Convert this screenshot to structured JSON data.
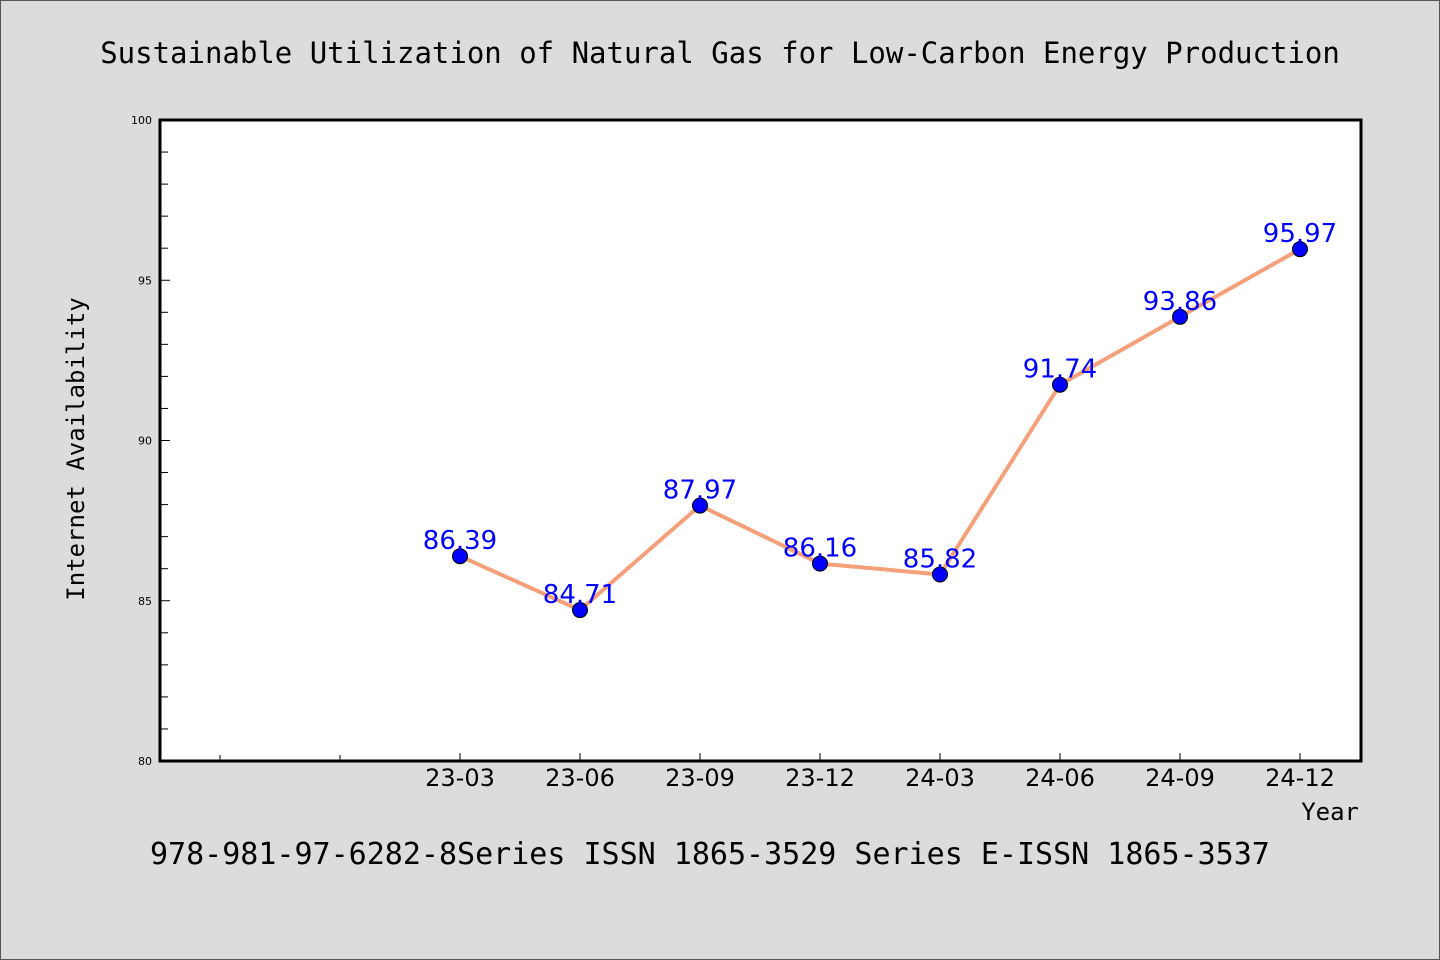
{
  "chart_data": {
    "type": "line",
    "title": "Sustainable Utilization of Natural Gas for Low-Carbon Energy Production",
    "xlabel": "Year",
    "ylabel": "Internet Availability",
    "categories": [
      "23-03",
      "23-06",
      "23-09",
      "23-12",
      "24-03",
      "24-06",
      "24-09",
      "24-12"
    ],
    "values": [
      86.39,
      84.71,
      87.97,
      86.16,
      85.82,
      91.74,
      93.86,
      95.97
    ],
    "data_labels": [
      "86.39",
      "84.71",
      "87.97",
      "86.16",
      "85.82",
      "91.74",
      "93.86",
      "95.97"
    ],
    "ylim": [
      80,
      100
    ],
    "yticks": [
      "80",
      "85",
      "90",
      "95",
      "100"
    ],
    "grid": false,
    "legend": "none",
    "colors": {
      "line": "#f4a07a",
      "marker": "#0000ff",
      "label": "#0000ff",
      "background": "#dcdcdc",
      "plot_background": "#ffffff"
    }
  },
  "footer": {
    "text": "978-981-97-6282-8Series ISSN 1865-3529 Series E-ISSN 1865-3537"
  }
}
